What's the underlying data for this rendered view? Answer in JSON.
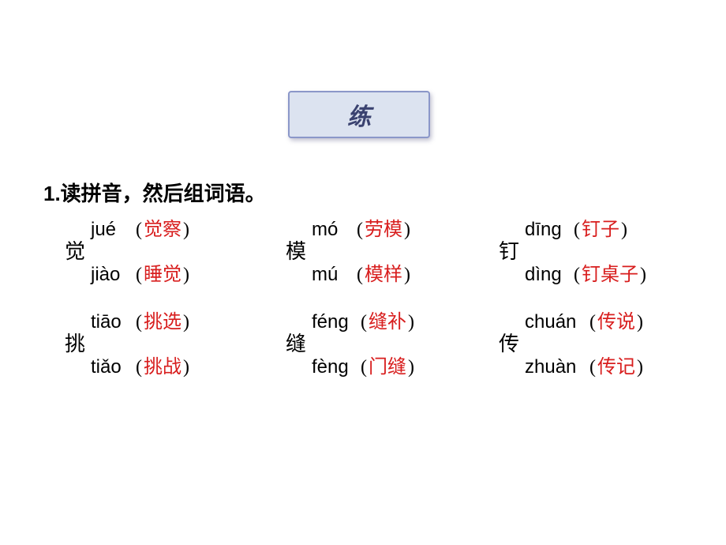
{
  "badge": {
    "label": "练"
  },
  "instruction": "1.读拼音，然后组词语。",
  "groups": [
    [
      {
        "hanzi": "觉",
        "r1_pin": "jué",
        "r1_ans": "觉察",
        "r2_pin": "jiào",
        "r2_ans": "睡觉"
      },
      {
        "hanzi": "模",
        "r1_pin": "mó",
        "r1_ans": "劳模",
        "r2_pin": "mú",
        "r2_ans": "模样"
      },
      {
        "hanzi": "钉",
        "r1_pin": "dīng",
        "r1_ans": "钉子",
        "r2_pin": "dìng",
        "r2_ans": "钉桌子"
      }
    ],
    [
      {
        "hanzi": "挑",
        "r1_pin": "tiāo",
        "r1_ans": "挑选",
        "r2_pin": "tiǎo",
        "r2_ans": "挑战"
      },
      {
        "hanzi": "缝",
        "r1_pin": "féng",
        "r1_ans": "缝补",
        "r2_pin": "fèng",
        "r2_ans": "门缝"
      },
      {
        "hanzi": "传",
        "r1_pin": "chuán",
        "r1_ans": "传说",
        "r2_pin": "zhuàn",
        "r2_ans": "传记"
      }
    ]
  ],
  "colors": {
    "answer": "#d81e1e",
    "badge_bg": "#dce3f0",
    "badge_border": "#8b97c9",
    "badge_text": "#3a4270"
  }
}
